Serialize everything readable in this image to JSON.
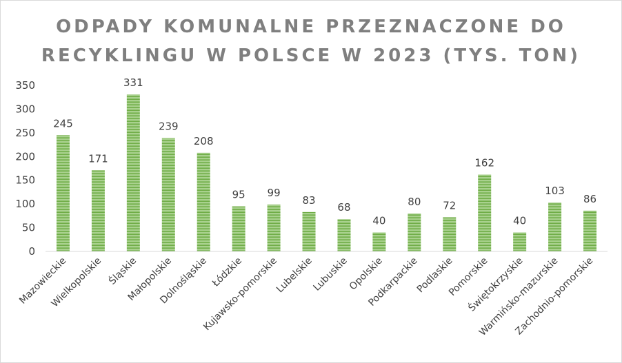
{
  "chart_data": {
    "type": "bar",
    "title": "ODPADY KOMUNALNE PRZEZNACZONE DO RECYKLINGU W POLSCE W 2023 (TYS. TON)",
    "title_lines": [
      "ODPADY KOMUNALNE PRZEZNACZONE DO",
      "RECYKLINGU W POLSCE W 2023 (TYS. TON)"
    ],
    "categories": [
      "Mazowieckie",
      "Wielkopolskie",
      "Śląskie",
      "Małopolskie",
      "Dolnośląskie",
      "Łódzkie",
      "Kujawsko-pomorskie",
      "Lubelskie",
      "Lubuskie",
      "Opolskie",
      "Podkarpackie",
      "Podlaskie",
      "Pomorskie",
      "Świętokrzyskie",
      "Warmińsko-mazurskie",
      "Zachodnio-pomorskie"
    ],
    "values": [
      245,
      171,
      331,
      239,
      208,
      95,
      99,
      83,
      68,
      40,
      80,
      72,
      162,
      40,
      103,
      86
    ],
    "value_labels": [
      "245",
      "171",
      "331",
      "239",
      "208",
      "95",
      "99",
      "83",
      "68",
      "40",
      "80",
      "72",
      "162",
      "40",
      "103",
      "86"
    ],
    "y_ticks": [
      "0",
      "50",
      "100",
      "150",
      "200",
      "250",
      "300",
      "350"
    ],
    "ylim": [
      0,
      350
    ],
    "xlabel": "",
    "ylabel": "",
    "grid": false,
    "legend": "none",
    "bar_fill": "#a9d18e",
    "bar_stripe": "#70ad47",
    "title_color": "#7f7f7f",
    "text_color": "#404040",
    "axis_color": "#d9d9d9"
  }
}
